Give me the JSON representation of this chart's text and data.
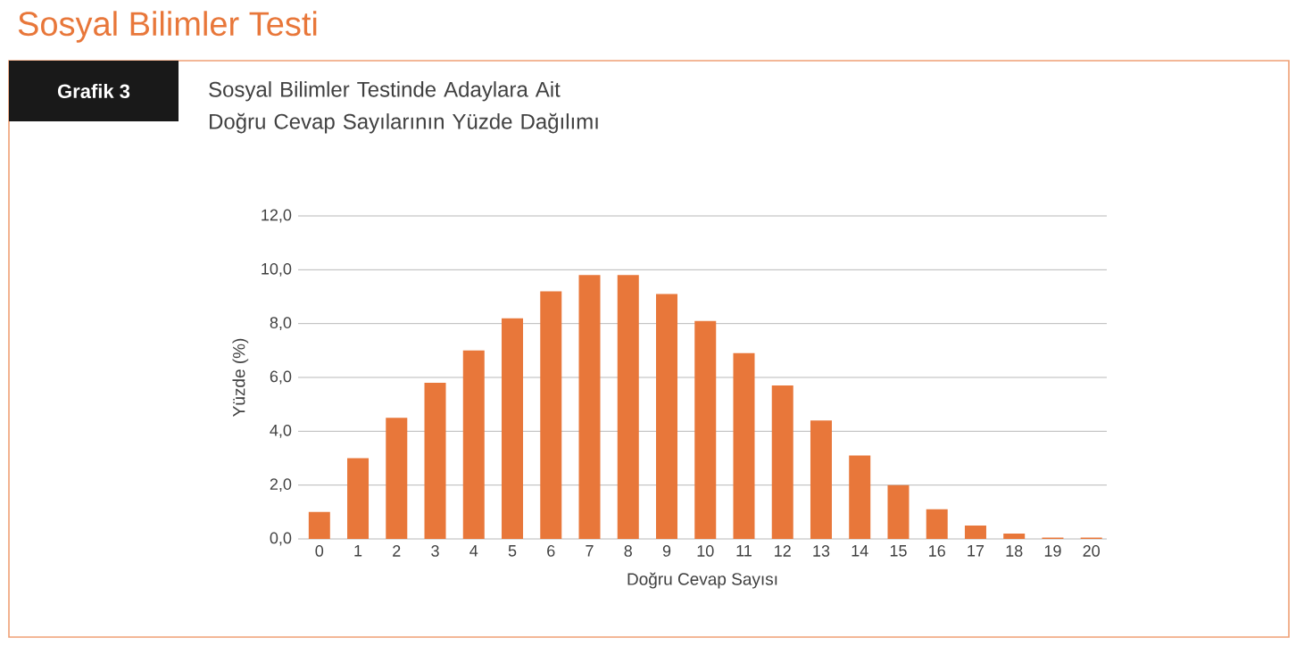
{
  "chart_data": {
    "type": "bar",
    "title": "Sosyal Bilimler Testi",
    "subtitle": "Sosyal Bilimler Testinde Adaylara Ait Doğru Cevap Sayılarının Yüzde Dağılımı",
    "annotations": [
      "Grafik 3"
    ],
    "xlabel": "Doğru Cevap Sayısı",
    "ylabel": "Yüzde (%)",
    "categories": [
      "0",
      "1",
      "2",
      "3",
      "4",
      "5",
      "6",
      "7",
      "8",
      "9",
      "10",
      "11",
      "12",
      "13",
      "14",
      "15",
      "16",
      "17",
      "18",
      "19",
      "20"
    ],
    "values": [
      1.0,
      3.0,
      4.5,
      5.8,
      7.0,
      8.2,
      9.2,
      9.8,
      9.8,
      9.1,
      8.1,
      6.9,
      5.7,
      4.4,
      3.1,
      2.0,
      1.1,
      0.5,
      0.2,
      0.05,
      0.05
    ],
    "color": "#e8773a",
    "ylim": [
      0,
      12
    ],
    "yticks": [
      {
        "value": 0,
        "label": "0,0"
      },
      {
        "value": 2,
        "label": "2,0"
      },
      {
        "value": 4,
        "label": "4,0"
      },
      {
        "value": 6,
        "label": "6,0"
      },
      {
        "value": 8,
        "label": "8,0"
      },
      {
        "value": 10,
        "label": "10,0"
      },
      {
        "value": 12,
        "label": "12,0"
      }
    ],
    "grid": "y"
  }
}
